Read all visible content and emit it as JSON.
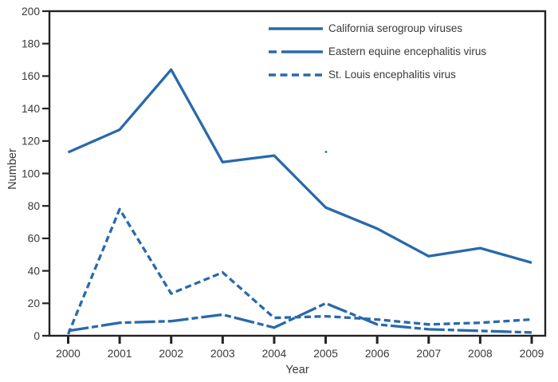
{
  "chart_data": {
    "type": "line",
    "title": "",
    "xlabel": "Year",
    "ylabel": "Number",
    "x": [
      2000,
      2001,
      2002,
      2003,
      2004,
      2005,
      2006,
      2007,
      2008,
      2009
    ],
    "ylim": [
      0,
      200
    ],
    "yticks": [
      0,
      20,
      40,
      60,
      80,
      100,
      120,
      140,
      160,
      180,
      200
    ],
    "grid": false,
    "legend_position": "top-right",
    "line_color": "#2969AB",
    "axis_color": "#262223",
    "text_color": "#3A3A3A",
    "series": [
      {
        "name": "California serogroup viruses",
        "style": "solid",
        "values": [
          113,
          127,
          164,
          107,
          111,
          79,
          66,
          49,
          54,
          45
        ]
      },
      {
        "name": "Eastern equine encephalitis virus",
        "style": "dash-dot",
        "values": [
          3,
          8,
          9,
          13,
          5,
          20,
          7,
          4,
          3,
          2
        ]
      },
      {
        "name": "St. Louis encephalitis virus",
        "style": "dashed",
        "values": [
          1,
          78,
          26,
          39,
          11,
          12,
          10,
          7,
          8,
          10
        ]
      }
    ]
  }
}
